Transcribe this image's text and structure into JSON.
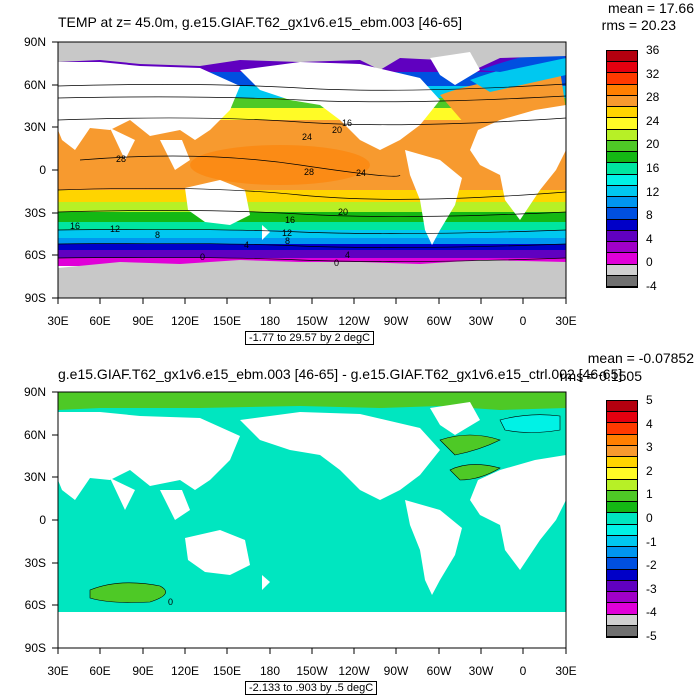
{
  "top": {
    "title": "TEMP at z=  45.0m, g.e15.GIAF.T62_gx1v6.e15_ebm.003 [46-65]",
    "mean": "mean = 17.66",
    "rms": "rms = 20.23",
    "range": "-1.77 to 29.57 by 2 degC",
    "lat_labels": [
      "90N",
      "60N",
      "30N",
      "0",
      "30S",
      "60S",
      "90S"
    ],
    "lon_labels": [
      "30E",
      "60E",
      "90E",
      "120E",
      "150E",
      "180",
      "150W",
      "120W",
      "90W",
      "60W",
      "30W",
      "0",
      "30E"
    ],
    "colorbar_labels": [
      "36",
      "32",
      "28",
      "24",
      "20",
      "16",
      "12",
      "8",
      "4",
      "0",
      "-4"
    ],
    "colorbar_colors": [
      "#b4000f",
      "#e4000f",
      "#ff3a00",
      "#ff7f00",
      "#f79a2f",
      "#ffd400",
      "#fffb26",
      "#b7f026",
      "#4ec926",
      "#14b814",
      "#00e6a0",
      "#00f2e6",
      "#00c8f0",
      "#0096f0",
      "#0050e0",
      "#0000c8",
      "#6000c0",
      "#a000c8",
      "#e000d8",
      "#d0d0d0",
      "#707070"
    ],
    "contour_labels": [
      "28",
      "24",
      "20",
      "16",
      "12",
      "8",
      "4",
      "0",
      "28",
      "24",
      "16",
      "20",
      "12",
      "8",
      "4",
      "0",
      "16"
    ]
  },
  "bottom": {
    "title": "g.e15.GIAF.T62_gx1v6.e15_ebm.003 [46-65] - g.e15.GIAF.T62_gx1v6.e15_ctrl.002 [46-65]",
    "mean": "mean = -0.07852",
    "rms": "rms = 0.1505",
    "range": "-2.133 to .903 by .5 degC",
    "lat_labels": [
      "90N",
      "60N",
      "30N",
      "0",
      "30S",
      "60S",
      "90S"
    ],
    "lon_labels": [
      "30E",
      "60E",
      "90E",
      "120E",
      "150E",
      "180",
      "150W",
      "120W",
      "90W",
      "60W",
      "30W",
      "0",
      "30E"
    ],
    "colorbar_labels": [
      "5",
      "4",
      "3",
      "2",
      "1",
      "0",
      "-1",
      "-2",
      "-3",
      "-4",
      "-5"
    ],
    "colorbar_colors": [
      "#b4000f",
      "#e4000f",
      "#ff3a00",
      "#ff7f00",
      "#f79a2f",
      "#ffd400",
      "#fffb26",
      "#b7f026",
      "#4ec926",
      "#14b814",
      "#00e6c0",
      "#00f2e6",
      "#00c8f0",
      "#0096f0",
      "#0050e0",
      "#0000c8",
      "#6000c0",
      "#a000c8",
      "#e000d8",
      "#d0d0d0",
      "#707070"
    ],
    "contour_labels": [
      "0"
    ]
  }
}
